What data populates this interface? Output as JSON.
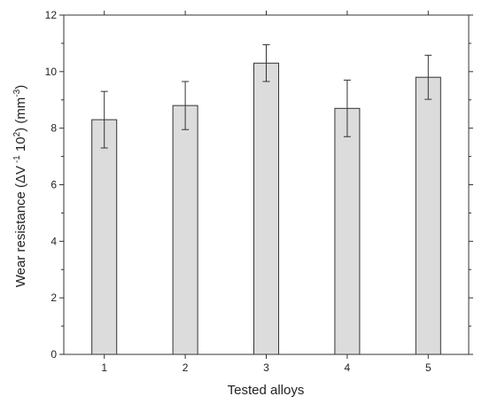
{
  "chart_data": {
    "type": "bar",
    "categories": [
      "1",
      "2",
      "3",
      "4",
      "5"
    ],
    "values": [
      8.3,
      8.8,
      10.3,
      8.7,
      9.8
    ],
    "errors": [
      1.0,
      0.85,
      0.65,
      1.0,
      0.78
    ],
    "ylim": [
      0,
      12
    ],
    "yticks": [
      0,
      2,
      4,
      6,
      8,
      10,
      12
    ],
    "ytick_labels": [
      "0",
      "2",
      "4",
      "6",
      "8",
      "10",
      "12"
    ],
    "xlabel": "Tested alloys",
    "ylabel": {
      "prefix": "Wear resistance  (ΔV",
      "sup1": " -1",
      "mid": " 10",
      "sup2": "2",
      "mid2": ") (mm",
      "sup3": "-3",
      "suffix": ")"
    },
    "grid": false,
    "legend": "none",
    "colors": {
      "bar_fill": "#dcdcdc",
      "bar_stroke": "#333333",
      "axis": "#333333"
    }
  }
}
